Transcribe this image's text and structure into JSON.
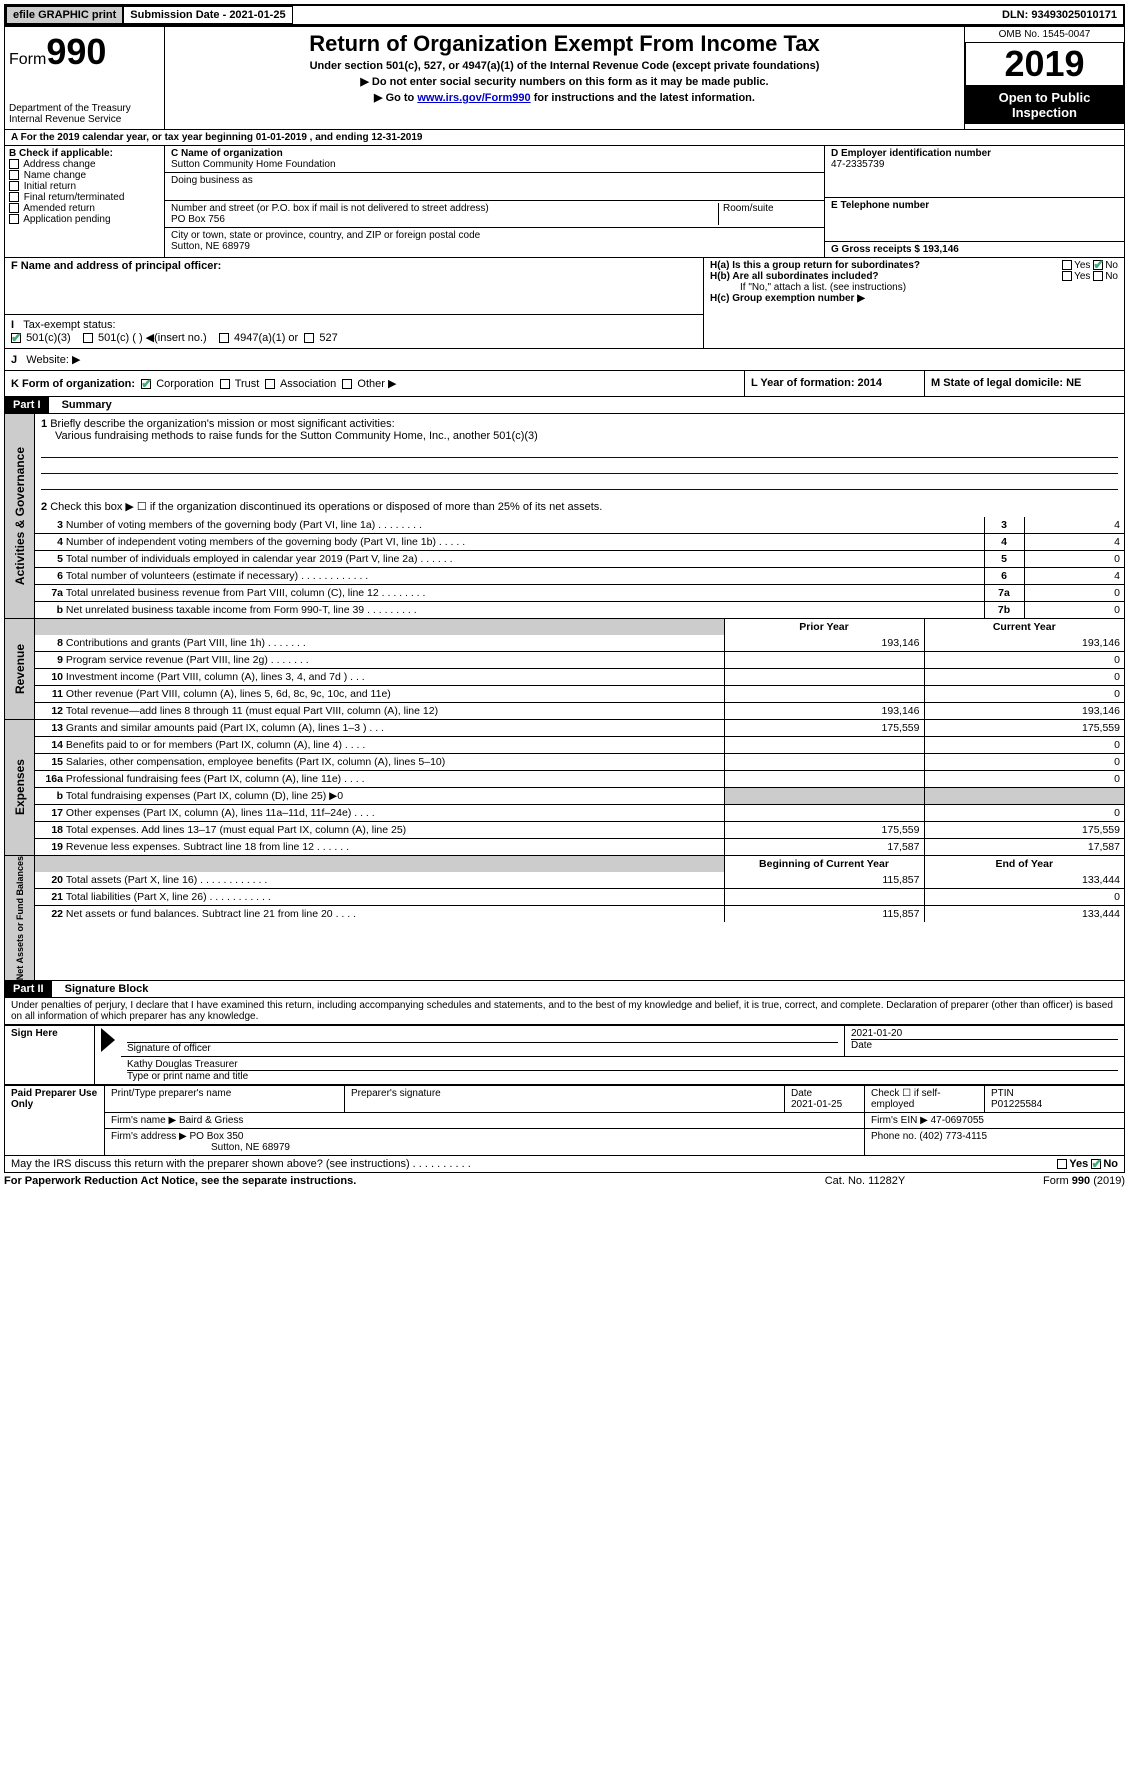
{
  "topbar": {
    "efile_label": "efile GRAPHIC print",
    "submission_label": "Submission Date - 2021-01-25",
    "dln_label": "DLN: 93493025010171"
  },
  "header": {
    "form_label": "Form",
    "form_number": "990",
    "dept": "Department of the Treasury",
    "irs": "Internal Revenue Service",
    "title": "Return of Organization Exempt From Income Tax",
    "subtitle": "Under section 501(c), 527, or 4947(a)(1) of the Internal Revenue Code (except private foundations)",
    "note1": "▶ Do not enter social security numbers on this form as it may be made public.",
    "note2_prefix": "▶ Go to ",
    "note2_link": "www.irs.gov/Form990",
    "note2_suffix": " for instructions and the latest information.",
    "omb": "OMB No. 1545-0047",
    "year": "2019",
    "open_public": "Open to Public Inspection"
  },
  "section_a": {
    "tax_year": "For the 2019 calendar year, or tax year beginning 01-01-2019     , and ending 12-31-2019",
    "b_label": "B Check if applicable:",
    "b_items": [
      "Address change",
      "Name change",
      "Initial return",
      "Final return/terminated",
      "Amended return",
      "Application pending"
    ],
    "c_label": "C Name of organization",
    "org_name": "Sutton Community Home Foundation",
    "dba_label": "Doing business as",
    "street_label": "Number and street (or P.O. box if mail is not delivered to street address)",
    "street": "PO Box 756",
    "room_label": "Room/suite",
    "city_label": "City or town, state or province, country, and ZIP or foreign postal code",
    "city": "Sutton, NE  68979",
    "d_label": "D Employer identification number",
    "ein": "47-2335739",
    "e_label": "E Telephone number",
    "g_label": "G Gross receipts $ 193,146",
    "f_label": "F  Name and address of principal officer:",
    "ha_label": "H(a)  Is this a group return for subordinates?",
    "hb_label": "H(b)  Are all subordinates included?",
    "hb_note": "If \"No,\" attach a list. (see instructions)",
    "hc_label": "H(c)  Group exemption number ▶",
    "yes": "Yes",
    "no": "No",
    "i_label": "Tax-exempt status:",
    "i_501c3": "501(c)(3)",
    "i_501c": "501(c) (   ) ◀(insert no.)",
    "i_4947": "4947(a)(1) or",
    "i_527": "527",
    "j_label": "Website: ▶",
    "k_label": "K Form of organization:",
    "k_corp": "Corporation",
    "k_trust": "Trust",
    "k_assoc": "Association",
    "k_other": "Other ▶",
    "l_label": "L Year of formation: 2014",
    "m_label": "M State of legal domicile: NE"
  },
  "part1": {
    "header": "Part I",
    "title": "Summary",
    "q1_label": "Briefly describe the organization's mission or most significant activities:",
    "q1_text": "Various fundraising methods to raise funds for the Sutton Community Home, Inc., another 501(c)(3)",
    "q2_label": "Check this box ▶ ☐  if the organization discontinued its operations or disposed of more than 25% of its net assets.",
    "rows_gov": [
      {
        "n": "3",
        "t": "Number of voting members of the governing body (Part VI, line 1a)   .     .     .     .     .     .     .     .",
        "rn": "3",
        "v": "4"
      },
      {
        "n": "4",
        "t": "Number of independent voting members of the governing body (Part VI, line 1b)   .     .     .     .     .",
        "rn": "4",
        "v": "4"
      },
      {
        "n": "5",
        "t": "Total number of individuals employed in calendar year 2019 (Part V, line 2a)   .     .     .     .     .     .",
        "rn": "5",
        "v": "0"
      },
      {
        "n": "6",
        "t": "Total number of volunteers (estimate if necessary)   .     .     .     .     .     .     .     .     .     .     .     .",
        "rn": "6",
        "v": "4"
      },
      {
        "n": "7a",
        "t": "Total unrelated business revenue from Part VIII, column (C), line 12   .     .     .     .     .     .     .     .",
        "rn": "7a",
        "v": "0"
      },
      {
        "n": "b",
        "t": "Net unrelated business taxable income from Form 990-T, line 39   .     .     .     .     .     .     .     .     .",
        "rn": "7b",
        "v": "0"
      }
    ],
    "col_prior": "Prior Year",
    "col_current": "Current Year",
    "rows_rev": [
      {
        "n": "8",
        "t": "Contributions and grants (Part VIII, line 1h)   .     .     .     .     .     .     .",
        "p": "193,146",
        "c": "193,146"
      },
      {
        "n": "9",
        "t": "Program service revenue (Part VIII, line 2g)   .     .     .     .     .     .     .",
        "p": "",
        "c": "0"
      },
      {
        "n": "10",
        "t": "Investment income (Part VIII, column (A), lines 3, 4, and 7d )   .     .     .",
        "p": "",
        "c": "0"
      },
      {
        "n": "11",
        "t": "Other revenue (Part VIII, column (A), lines 5, 6d, 8c, 9c, 10c, and 11e)",
        "p": "",
        "c": "0"
      },
      {
        "n": "12",
        "t": "Total revenue—add lines 8 through 11 (must equal Part VIII, column (A), line 12)",
        "p": "193,146",
        "c": "193,146"
      }
    ],
    "rows_exp": [
      {
        "n": "13",
        "t": "Grants and similar amounts paid (Part IX, column (A), lines 1–3 )   .     .     .",
        "p": "175,559",
        "c": "175,559"
      },
      {
        "n": "14",
        "t": "Benefits paid to or for members (Part IX, column (A), line 4)   .     .     .     .",
        "p": "",
        "c": "0"
      },
      {
        "n": "15",
        "t": "Salaries, other compensation, employee benefits (Part IX, column (A), lines 5–10)",
        "p": "",
        "c": "0"
      },
      {
        "n": "16a",
        "t": "Professional fundraising fees (Part IX, column (A), line 11e)   .     .     .     .",
        "p": "",
        "c": "0"
      },
      {
        "n": "b",
        "t": "Total fundraising expenses (Part IX, column (D), line 25) ▶0",
        "p": "shade",
        "c": "shade"
      },
      {
        "n": "17",
        "t": "Other expenses (Part IX, column (A), lines 11a–11d, 11f–24e)   .     .     .     .",
        "p": "",
        "c": "0"
      },
      {
        "n": "18",
        "t": "Total expenses. Add lines 13–17 (must equal Part IX, column (A), line 25)",
        "p": "175,559",
        "c": "175,559"
      },
      {
        "n": "19",
        "t": "Revenue less expenses. Subtract line 18 from line 12   .     .     .     .     .     .",
        "p": "17,587",
        "c": "17,587"
      }
    ],
    "col_begin": "Beginning of Current Year",
    "col_end": "End of Year",
    "rows_net": [
      {
        "n": "20",
        "t": "Total assets (Part X, line 16)   .     .     .     .     .     .     .     .     .     .     .     .",
        "p": "115,857",
        "c": "133,444"
      },
      {
        "n": "21",
        "t": "Total liabilities (Part X, line 26)   .     .     .     .     .     .     .     .     .     .     .",
        "p": "",
        "c": "0"
      },
      {
        "n": "22",
        "t": "Net assets or fund balances. Subtract line 21 from line 20   .     .     .     .",
        "p": "115,857",
        "c": "133,444"
      }
    ],
    "side_gov": "Activities & Governance",
    "side_rev": "Revenue",
    "side_exp": "Expenses",
    "side_net": "Net Assets or Fund Balances"
  },
  "part2": {
    "header": "Part II",
    "title": "Signature Block",
    "perjury": "Under penalties of perjury, I declare that I have examined this return, including accompanying schedules and statements, and to the best of my knowledge and belief, it is true, correct, and complete. Declaration of preparer (other than officer) is based on all information of which preparer has any knowledge.",
    "sign_here": "Sign Here",
    "sig_officer": "Signature of officer",
    "sig_date": "2021-01-20",
    "date_label": "Date",
    "officer_name": "Kathy Douglas Treasurer",
    "type_name": "Type or print name and title",
    "paid_label": "Paid Preparer Use Only",
    "preparer_name_label": "Print/Type preparer's name",
    "preparer_sig_label": "Preparer's signature",
    "prep_date": "2021-01-25",
    "self_emp": "Check ☐ if self-employed",
    "ptin_label": "PTIN",
    "ptin": "P01225584",
    "firm_name_label": "Firm's name     ▶",
    "firm_name": "Baird & Griess",
    "firm_ein_label": "Firm's EIN ▶",
    "firm_ein": "47-0697055",
    "firm_addr_label": "Firm's address ▶",
    "firm_addr1": "PO Box 350",
    "firm_addr2": "Sutton, NE  68979",
    "phone_label": "Phone no.",
    "phone": "(402) 773-4115",
    "discuss": "May the IRS discuss this return with the preparer shown above? (see instructions)     .     .     .     .     .     .     .     .     .     .",
    "paperwork": "For Paperwork Reduction Act Notice, see the separate instructions.",
    "cat": "Cat. No. 11282Y",
    "form_footer": "Form 990 (2019)"
  }
}
